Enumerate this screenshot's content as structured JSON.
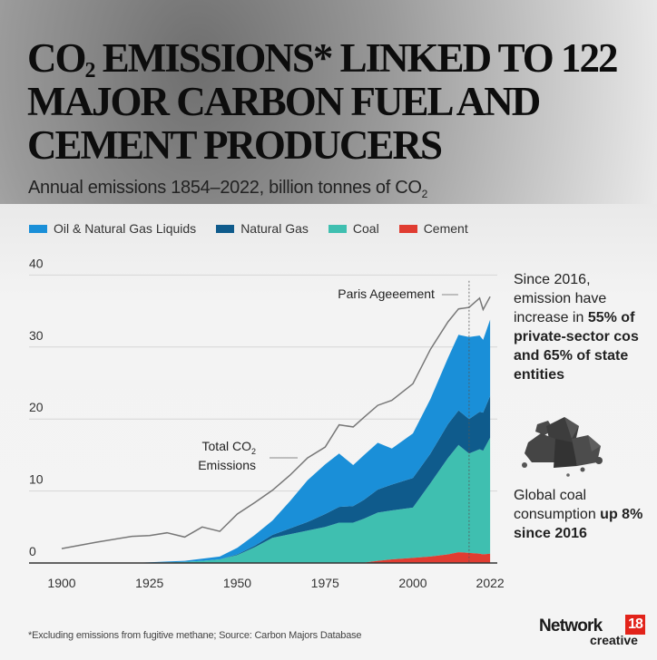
{
  "header": {
    "title_pre": "CO",
    "title_sub": "2",
    "title_post": " EMISSIONS* LINKED TO 122 MAJOR CARBON FUEL AND CEMENT PRODUCERS",
    "subtitle_pre": "Annual emissions 1854–2022, billion tonnes of CO",
    "subtitle_sub": "2"
  },
  "side_notes": {
    "note1_regular": "Since 2016, emission have increase in ",
    "note1_bold": "55% of private-sector cos and 65% of state entities",
    "note2_regular": "Global coal consumption ",
    "note2_bold": "up 8% since 2016",
    "icon": "coal-pile-icon"
  },
  "footer": {
    "footnote": "*Excluding emissions from fugitive methane; Source: Carbon Majors Database",
    "logo_text": "Network",
    "logo_number": "18",
    "logo_sub": "creative",
    "logo_color": "#e2231a"
  },
  "chart_data": {
    "type": "area",
    "stacked": true,
    "title": "CO2 EMISSIONS* LINKED TO 122 MAJOR CARBON FUEL AND CEMENT PRODUCERS",
    "subtitle": "Annual emissions 1854–2022, billion tonnes of CO2",
    "xlabel": "",
    "ylabel": "",
    "xlim": [
      1892,
      2030
    ],
    "ylim": [
      0,
      40
    ],
    "grid": true,
    "legend_position": "top",
    "x_ticks": [
      "1900",
      "1925",
      "1950",
      "1975",
      "2000",
      "2022"
    ],
    "x_tick_values": [
      1900,
      1925,
      1950,
      1975,
      2000,
      2022
    ],
    "y_ticks": [
      "0",
      "10",
      "20",
      "30",
      "40"
    ],
    "y_tick_values": [
      0,
      10,
      20,
      30,
      40
    ],
    "x": [
      1900,
      1910,
      1920,
      1925,
      1930,
      1935,
      1940,
      1945,
      1950,
      1955,
      1960,
      1965,
      1970,
      1975,
      1979,
      1983,
      1986,
      1990,
      1994,
      2000,
      2005,
      2010,
      2013,
      2016,
      2019,
      2020,
      2022
    ],
    "series": [
      {
        "name": "Cement",
        "color": "#e03c31",
        "values": [
          0,
          0,
          0,
          0,
          0,
          0,
          0,
          0,
          0,
          0,
          0,
          0,
          0,
          0,
          0,
          0,
          0.05,
          0.3,
          0.5,
          0.7,
          0.9,
          1.2,
          1.5,
          1.4,
          1.3,
          1.2,
          1.3
        ]
      },
      {
        "name": "Coal",
        "color": "#3fbfb0",
        "values": [
          0,
          0,
          0,
          0.05,
          0.1,
          0.15,
          0.3,
          0.5,
          1.1,
          2.2,
          3.5,
          4.0,
          4.5,
          5.0,
          5.6,
          5.6,
          6.1,
          6.7,
          6.8,
          7.0,
          10.2,
          13.4,
          14.9,
          13.8,
          14.5,
          14.4,
          16.1
        ]
      },
      {
        "name": "Natural Gas",
        "color": "#0f5b8c",
        "values": [
          0,
          0,
          0,
          0,
          0,
          0,
          0,
          0,
          0.1,
          0.2,
          0.4,
          0.8,
          1.2,
          1.8,
          2.2,
          2.3,
          2.6,
          3.2,
          3.6,
          4.1,
          4.1,
          4.7,
          4.8,
          4.8,
          5.2,
          5.3,
          5.8
        ]
      },
      {
        "name": "Oil & Natural Gas Liquids",
        "color": "#1a8fd8",
        "values": [
          0,
          0,
          0,
          0.05,
          0.1,
          0.15,
          0.3,
          0.4,
          0.9,
          1.5,
          2.0,
          3.8,
          5.8,
          6.9,
          7.4,
          5.7,
          6.2,
          6.5,
          5.0,
          6.2,
          7.6,
          9.2,
          10.5,
          11.4,
          10.6,
          10.1,
          10.6
        ]
      }
    ],
    "total_line": {
      "name": "Total CO2 Emissions",
      "color": "#777777",
      "values": [
        2.0,
        2.9,
        3.7,
        3.8,
        4.2,
        3.6,
        5.0,
        4.4,
        6.8,
        8.4,
        10.1,
        12.2,
        14.6,
        16.1,
        19.2,
        18.9,
        20.2,
        21.9,
        22.6,
        24.9,
        29.7,
        33.5,
        35.3,
        35.5,
        36.8,
        35.2,
        37.0
      ]
    },
    "annotations": [
      {
        "text_pre": "Total CO",
        "text_sub": "2",
        "text_post": "Emissions",
        "target": "total_line"
      },
      {
        "text": "Paris Ageeement",
        "x": 2016
      }
    ]
  }
}
